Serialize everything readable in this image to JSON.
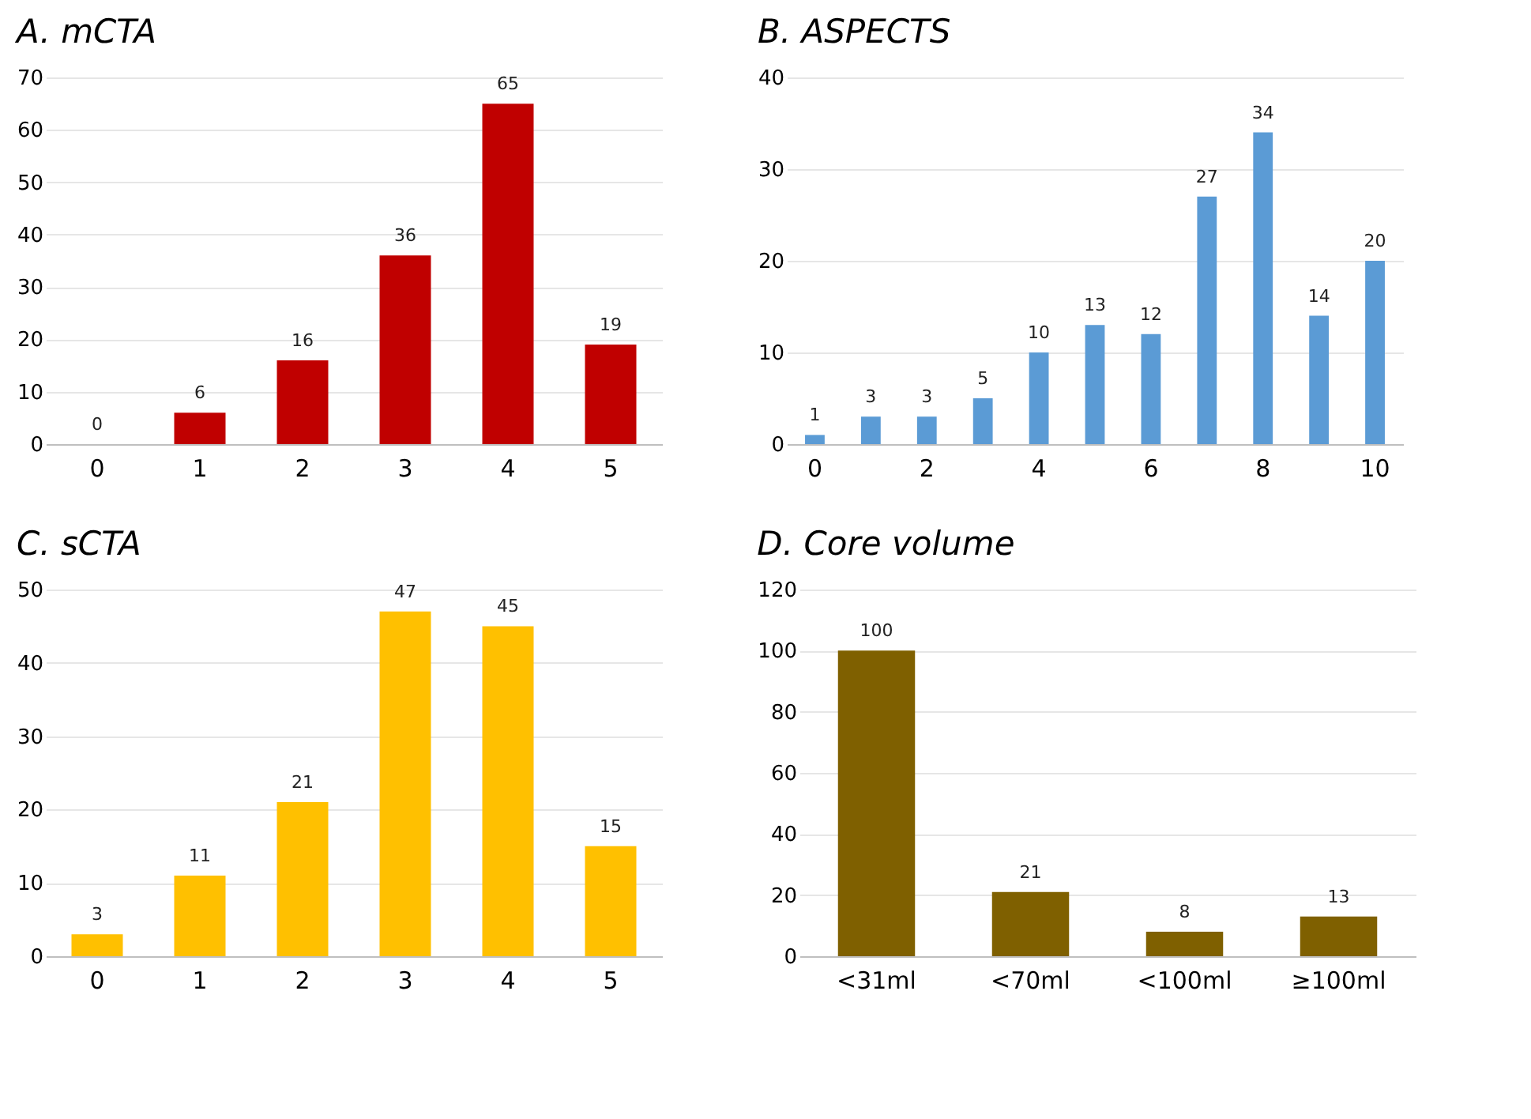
{
  "chart_data": [
    {
      "type": "bar",
      "title": "A. mCTA",
      "categories": [
        "0",
        "1",
        "2",
        "3",
        "4",
        "5"
      ],
      "values": [
        0,
        6,
        16,
        36,
        65,
        19
      ],
      "color": "#c00000",
      "ylim": [
        0,
        70
      ],
      "yticks": [
        0,
        10,
        20,
        30,
        40,
        50,
        60,
        70
      ],
      "grid": "y",
      "data_labels": true
    },
    {
      "type": "bar",
      "title": "B. ASPECTS",
      "categories": [
        "0",
        null,
        "2",
        null,
        "4",
        null,
        "6",
        null,
        "8",
        null,
        "10"
      ],
      "values": [
        1,
        3,
        3,
        5,
        10,
        13,
        12,
        27,
        34,
        14,
        20
      ],
      "color": "#5b9bd5",
      "ylim": [
        0,
        40
      ],
      "yticks": [
        0,
        10,
        20,
        30,
        40
      ],
      "grid": "y",
      "data_labels": true
    },
    {
      "type": "bar",
      "title": "C. sCTA",
      "categories": [
        "0",
        "1",
        "2",
        "3",
        "4",
        "5"
      ],
      "values": [
        3,
        11,
        21,
        47,
        45,
        15
      ],
      "color": "#ffc000",
      "ylim": [
        0,
        50
      ],
      "yticks": [
        0,
        10,
        20,
        30,
        40,
        50
      ],
      "grid": "y",
      "data_labels": true
    },
    {
      "type": "bar",
      "title": "D. Core volume",
      "categories": [
        "<31ml",
        "<70ml",
        "<100ml",
        "≥100ml"
      ],
      "values": [
        100,
        21,
        8,
        13
      ],
      "color": "#7f6000",
      "ylim": [
        0,
        120
      ],
      "yticks": [
        0,
        20,
        40,
        60,
        80,
        100,
        120
      ],
      "grid": "y",
      "data_labels": true
    }
  ]
}
